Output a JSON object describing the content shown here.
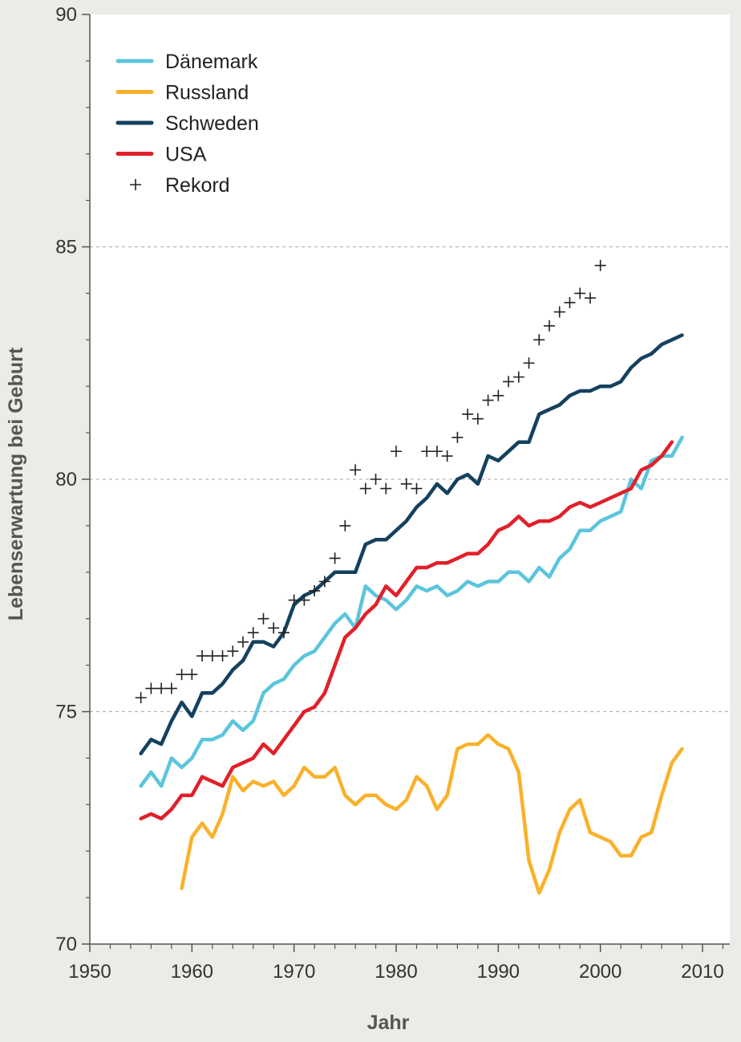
{
  "chart_data": {
    "type": "line",
    "xlabel": "Jahr",
    "ylabel": "Lebenserwartung bei Geburt",
    "xlim": [
      1950,
      2010
    ],
    "ylim": [
      70,
      90
    ],
    "xticks": [
      1950,
      1960,
      1970,
      1980,
      1990,
      2000,
      2010
    ],
    "yticks": [
      70,
      75,
      80,
      85,
      90
    ],
    "grid": "horizontal dashed at 75, 80, 85",
    "legend_position": "top-left",
    "series": [
      {
        "name": "Dänemark",
        "type": "line",
        "color": "#5bc5dc",
        "x": [
          1955,
          1956,
          1957,
          1958,
          1959,
          1960,
          1961,
          1962,
          1963,
          1964,
          1965,
          1966,
          1967,
          1968,
          1969,
          1970,
          1971,
          1972,
          1973,
          1974,
          1975,
          1976,
          1977,
          1978,
          1979,
          1980,
          1981,
          1982,
          1983,
          1984,
          1985,
          1986,
          1987,
          1988,
          1989,
          1990,
          1991,
          1992,
          1993,
          1994,
          1995,
          1996,
          1997,
          1998,
          1999,
          2000,
          2001,
          2002,
          2003,
          2004,
          2005,
          2006,
          2007,
          2008
        ],
        "y": [
          73.4,
          73.7,
          73.4,
          74.0,
          73.8,
          74.0,
          74.4,
          74.4,
          74.5,
          74.8,
          74.6,
          74.8,
          75.4,
          75.6,
          75.7,
          76.0,
          76.2,
          76.3,
          76.6,
          76.9,
          77.1,
          76.8,
          77.7,
          77.5,
          77.4,
          77.2,
          77.4,
          77.7,
          77.6,
          77.7,
          77.5,
          77.6,
          77.8,
          77.7,
          77.8,
          77.8,
          78.0,
          78.0,
          77.8,
          78.1,
          77.9,
          78.3,
          78.5,
          78.9,
          78.9,
          79.1,
          79.2,
          79.3,
          80.0,
          79.8,
          80.4,
          80.5,
          80.5,
          80.9
        ]
      },
      {
        "name": "Russland",
        "type": "line",
        "color": "#f9b12b",
        "x": [
          1959,
          1960,
          1961,
          1962,
          1963,
          1964,
          1965,
          1966,
          1967,
          1968,
          1969,
          1970,
          1971,
          1972,
          1973,
          1974,
          1975,
          1976,
          1977,
          1978,
          1979,
          1980,
          1981,
          1982,
          1983,
          1984,
          1985,
          1986,
          1987,
          1988,
          1989,
          1990,
          1991,
          1992,
          1993,
          1994,
          1995,
          1996,
          1997,
          1998,
          1999,
          2000,
          2001,
          2002,
          2003,
          2004,
          2005,
          2006,
          2007,
          2008
        ],
        "y": [
          71.2,
          72.3,
          72.6,
          72.3,
          72.8,
          73.6,
          73.3,
          73.5,
          73.4,
          73.5,
          73.2,
          73.4,
          73.8,
          73.6,
          73.6,
          73.8,
          73.2,
          73.0,
          73.2,
          73.2,
          73.0,
          72.9,
          73.1,
          73.6,
          73.4,
          72.9,
          73.2,
          74.2,
          74.3,
          74.3,
          74.5,
          74.3,
          74.2,
          73.7,
          71.8,
          71.1,
          71.6,
          72.4,
          72.9,
          73.1,
          72.4,
          72.3,
          72.2,
          71.9,
          71.9,
          72.3,
          72.4,
          73.2,
          73.9,
          74.2
        ]
      },
      {
        "name": "Schweden",
        "type": "line",
        "color": "#14415f",
        "x": [
          1955,
          1956,
          1957,
          1958,
          1959,
          1960,
          1961,
          1962,
          1963,
          1964,
          1965,
          1966,
          1967,
          1968,
          1969,
          1970,
          1971,
          1972,
          1973,
          1974,
          1975,
          1976,
          1977,
          1978,
          1979,
          1980,
          1981,
          1982,
          1983,
          1984,
          1985,
          1986,
          1987,
          1988,
          1989,
          1990,
          1991,
          1992,
          1993,
          1994,
          1995,
          1996,
          1997,
          1998,
          1999,
          2000,
          2001,
          2002,
          2003,
          2004,
          2005,
          2006,
          2007,
          2008
        ],
        "y": [
          74.1,
          74.4,
          74.3,
          74.8,
          75.2,
          74.9,
          75.4,
          75.4,
          75.6,
          75.9,
          76.1,
          76.5,
          76.5,
          76.4,
          76.7,
          77.3,
          77.5,
          77.6,
          77.8,
          78.0,
          78.0,
          78.0,
          78.6,
          78.7,
          78.7,
          78.9,
          79.1,
          79.4,
          79.6,
          79.9,
          79.7,
          80.0,
          80.1,
          79.9,
          80.5,
          80.4,
          80.6,
          80.8,
          80.8,
          81.4,
          81.5,
          81.6,
          81.8,
          81.9,
          81.9,
          82.0,
          82.0,
          82.1,
          82.4,
          82.6,
          82.7,
          82.9,
          83.0,
          83.1
        ]
      },
      {
        "name": "USA",
        "type": "line",
        "color": "#e0202a",
        "x": [
          1955,
          1956,
          1957,
          1958,
          1959,
          1960,
          1961,
          1962,
          1963,
          1964,
          1965,
          1966,
          1967,
          1968,
          1969,
          1970,
          1971,
          1972,
          1973,
          1974,
          1975,
          1976,
          1977,
          1978,
          1979,
          1980,
          1981,
          1982,
          1983,
          1984,
          1985,
          1986,
          1987,
          1988,
          1989,
          1990,
          1991,
          1992,
          1993,
          1994,
          1995,
          1996,
          1997,
          1998,
          1999,
          2000,
          2001,
          2002,
          2003,
          2004,
          2005,
          2006,
          2007
        ],
        "y": [
          72.7,
          72.8,
          72.7,
          72.9,
          73.2,
          73.2,
          73.6,
          73.5,
          73.4,
          73.8,
          73.9,
          74.0,
          74.3,
          74.1,
          74.4,
          74.7,
          75.0,
          75.1,
          75.4,
          76.0,
          76.6,
          76.8,
          77.1,
          77.3,
          77.7,
          77.5,
          77.8,
          78.1,
          78.1,
          78.2,
          78.2,
          78.3,
          78.4,
          78.4,
          78.6,
          78.9,
          79.0,
          79.2,
          79.0,
          79.1,
          79.1,
          79.2,
          79.4,
          79.5,
          79.4,
          79.5,
          79.6,
          79.7,
          79.8,
          80.2,
          80.3,
          80.5,
          80.8
        ]
      },
      {
        "name": "Rekord",
        "type": "scatter",
        "color": "#222222",
        "x": [
          1955,
          1956,
          1957,
          1958,
          1959,
          1960,
          1961,
          1962,
          1963,
          1964,
          1965,
          1966,
          1967,
          1968,
          1969,
          1970,
          1971,
          1972,
          1973,
          1974,
          1975,
          1976,
          1977,
          1978,
          1979,
          1980,
          1981,
          1982,
          1983,
          1984,
          1985,
          1986,
          1987,
          1988,
          1989,
          1990,
          1991,
          1992,
          1993,
          1994,
          1995,
          1996,
          1997,
          1998,
          1999,
          2000
        ],
        "y": [
          75.3,
          75.5,
          75.5,
          75.5,
          75.8,
          75.8,
          76.2,
          76.2,
          76.2,
          76.3,
          76.5,
          76.7,
          77.0,
          76.8,
          76.7,
          77.4,
          77.4,
          77.6,
          77.8,
          78.3,
          79.0,
          80.2,
          79.8,
          80.0,
          79.8,
          80.6,
          79.9,
          79.8,
          80.6,
          80.6,
          80.5,
          80.9,
          81.4,
          81.3,
          81.7,
          81.8,
          82.1,
          82.2,
          82.5,
          83.0,
          83.3,
          83.6,
          83.8,
          84.0,
          83.9,
          84.6
        ]
      }
    ]
  }
}
